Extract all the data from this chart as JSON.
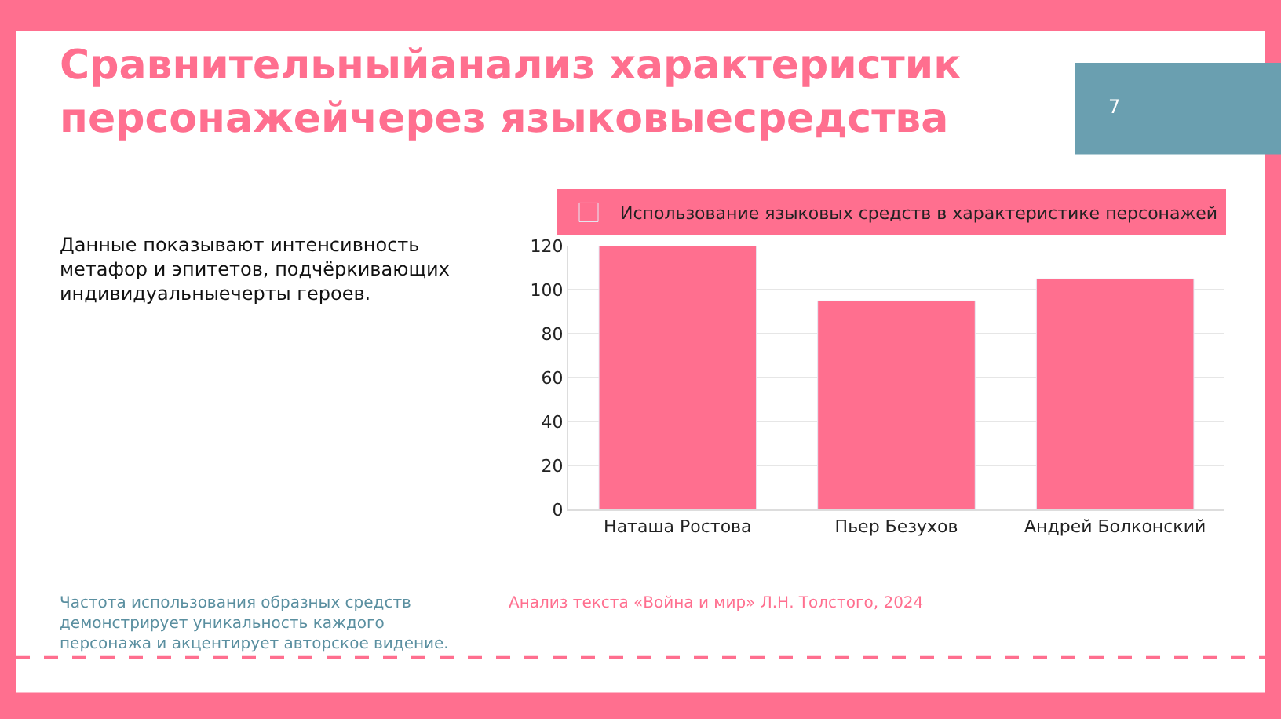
{
  "chart_data": {
    "type": "bar",
    "title": "Сравнительныйанализ характеристик\nперсонажейчерез языковыесредства",
    "subtitle": "Данные показывают интенсивность\nметафор и эпитетов, подчёркивающих\nиндивидуальныечерты героев.",
    "categories": [
      "Наташа Ростова",
      "Пьер Безухов",
      "Андрей Болконский"
    ],
    "series": [
      {
        "name": "Использование языковых средств в характеристике персонажей",
        "color": "#ff6f8f",
        "values": [
          120,
          95,
          105
        ]
      }
    ],
    "ylim": [
      0,
      120
    ],
    "yticks": [
      0,
      20,
      40,
      60,
      80,
      100,
      120
    ],
    "grid": "y",
    "legend": "top",
    "annotations": [
      "Частота использования образных средств\nдемонстрирует уникальность каждого\nперсонажа и акцентирует авторское видение.",
      "Анализ текста «Война и мир» Л.Н. Толстого, 2024",
      "7"
    ]
  }
}
